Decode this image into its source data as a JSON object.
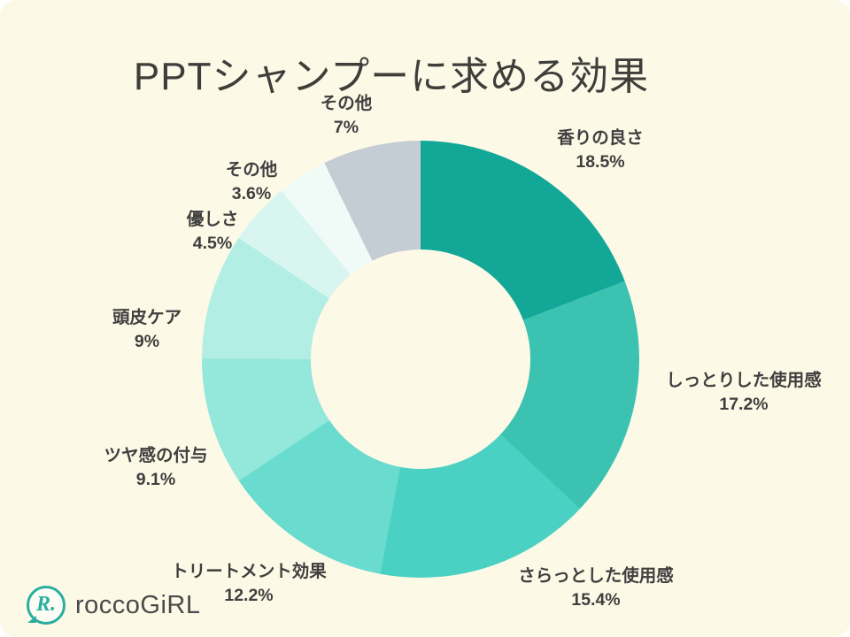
{
  "page": {
    "background_color": "#fdf9e7",
    "title": "PPTシャンプーに求める効果"
  },
  "chart_data": {
    "type": "pie",
    "subtype": "donut",
    "title": "PPTシャンプーに求める効果",
    "start_angle_deg": 0,
    "direction": "clockwise",
    "inner_radius_ratio": 0.5,
    "legend": "none",
    "labels_position": "outside",
    "background": "#fdf9e7",
    "segments": [
      {
        "label": "香りの良さ",
        "value": 18.5,
        "display": "18.5%",
        "color": "#12a797"
      },
      {
        "label": "しっとりした使用感",
        "value": 17.2,
        "display": "17.2%",
        "color": "#3cc2b1"
      },
      {
        "label": "さらっとした使用感",
        "value": 15.4,
        "display": "15.4%",
        "color": "#4bd1c3"
      },
      {
        "label": "トリートメント効果",
        "value": 12.2,
        "display": "12.2%",
        "color": "#69dccf"
      },
      {
        "label": "ツヤ感の付与",
        "value": 9.1,
        "display": "9.1%",
        "color": "#93e7db"
      },
      {
        "label": "頭皮ケア",
        "value": 9,
        "display": "9%",
        "color": "#b3eee5"
      },
      {
        "label": "優しさ",
        "value": 4.5,
        "display": "4.5%",
        "color": "#d9f5f0"
      },
      {
        "label": "その他",
        "value": 3.6,
        "display": "3.6%",
        "color": "#f0fbf8"
      },
      {
        "label": "その他",
        "value": 7,
        "display": "7%",
        "color": "#c4ccd4"
      }
    ]
  },
  "footer": {
    "logo_text": "roccoGiRL",
    "logo_monogram": "R.",
    "brand_color": "#2aae9e"
  }
}
